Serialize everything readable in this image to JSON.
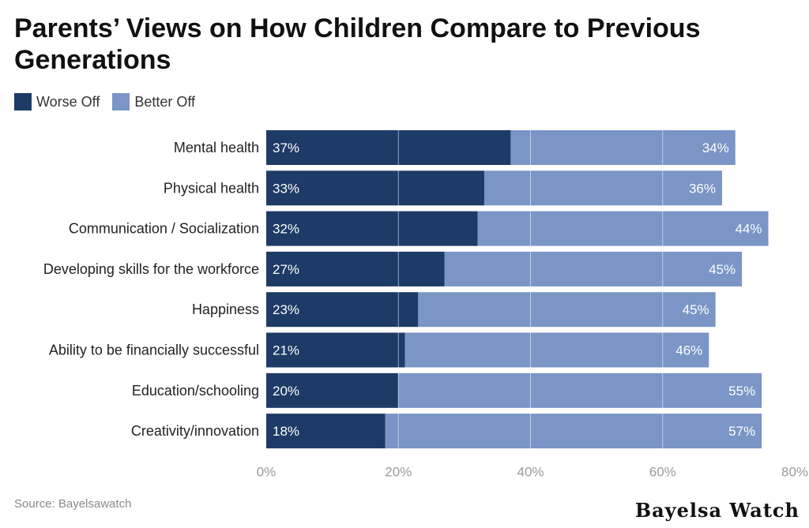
{
  "chart_data": {
    "type": "bar",
    "orientation": "horizontal",
    "stacked": true,
    "title": "Parents’ Views on How Children Compare to Previous Generations",
    "categories": [
      "Mental health",
      "Physical health",
      "Communication / Socialization",
      "Developing skills for the workforce",
      "Happiness",
      "Ability to be financially successful",
      "Education/schooling",
      "Creativity/innovation"
    ],
    "series": [
      {
        "name": "Worse Off",
        "color": "#1e3a66",
        "values": [
          37,
          33,
          32,
          27,
          23,
          21,
          20,
          18
        ]
      },
      {
        "name": "Better Off",
        "color": "#7a95c6",
        "values": [
          34,
          36,
          44,
          45,
          45,
          46,
          55,
          57
        ]
      }
    ],
    "value_labels": {
      "Worse Off": [
        "37%",
        "33%",
        "32%",
        "27%",
        "23%",
        "21%",
        "20%",
        "18%"
      ],
      "Better Off": [
        "34%",
        "36%",
        "44%",
        "45%",
        "45%",
        "46%",
        "55%",
        "57%"
      ]
    },
    "xlim": [
      0,
      80
    ],
    "xticks": [
      0,
      20,
      40,
      60,
      80
    ],
    "xtick_labels": [
      "0%",
      "20%",
      "40%",
      "60%",
      "80%"
    ],
    "grid": true,
    "legend_position": "top-left"
  },
  "footer": {
    "source": "Source: Bayelsawatch",
    "brand": "Bayelsa Watch"
  }
}
